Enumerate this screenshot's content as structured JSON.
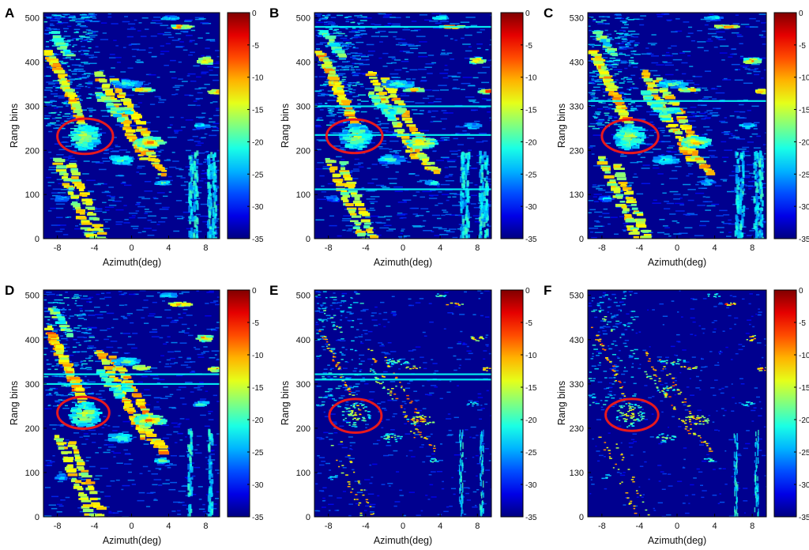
{
  "chart_data": [
    {
      "panel": "A",
      "type": "heatmap",
      "xlabel": "Azimuth(deg)",
      "ylabel": "Rang bins",
      "xticks": [
        "-8",
        "-4",
        "0",
        "4",
        "8"
      ],
      "yticks": [
        "0",
        "100",
        "200",
        "300",
        "400",
        "500"
      ],
      "xlim": [
        -9.5,
        9.5
      ],
      "ylim": [
        0,
        512
      ],
      "colorbar": {
        "ticks": [
          "0",
          "-5",
          "-10",
          "-15",
          "-20",
          "-25",
          "-30",
          "-35"
        ],
        "range": [
          -35,
          0
        ]
      },
      "highlight": {
        "shape": "ellipse",
        "center": [
          -5,
          232
        ],
        "radius": [
          3,
          40
        ],
        "color": "#e8191d"
      },
      "sharpness": 0.25,
      "hlines": [],
      "vlines": [
        6.3,
        6.8
      ]
    },
    {
      "panel": "B",
      "type": "heatmap",
      "xlabel": "Azimuth(deg)",
      "ylabel": "Rang bins",
      "xticks": [
        "-8",
        "-4",
        "0",
        "4",
        "8"
      ],
      "yticks": [
        "0",
        "100",
        "200",
        "300",
        "400",
        "500"
      ],
      "xlim": [
        -9.5,
        9.5
      ],
      "ylim": [
        0,
        512
      ],
      "colorbar": {
        "ticks": [
          "0",
          "-5",
          "-10",
          "-15",
          "-20",
          "-25",
          "-30",
          "-35"
        ],
        "range": [
          -35,
          0
        ]
      },
      "highlight": {
        "shape": "ellipse",
        "center": [
          -5.2,
          232
        ],
        "radius": [
          3,
          38
        ],
        "color": "#e8191d"
      },
      "sharpness": 0.2,
      "hlines": [
        480,
        300,
        235,
        112
      ],
      "vlines": [
        6.3,
        6.8
      ]
    },
    {
      "panel": "C",
      "type": "heatmap",
      "xlabel": "Azimuth(deg)",
      "ylabel": "Rang bins",
      "xticks": [
        "-8",
        "-4",
        "0",
        "4",
        "8"
      ],
      "yticks": [
        "0",
        "130",
        "230",
        "330",
        "430",
        "530"
      ],
      "xlim": [
        -9.5,
        9.5
      ],
      "ylim": [
        0,
        512
      ],
      "colorbar": {
        "ticks": [
          "0",
          "-5",
          "-10",
          "-15",
          "-20",
          "-25",
          "-30",
          "-35"
        ],
        "range": [
          -35,
          0
        ]
      },
      "highlight": {
        "shape": "ellipse",
        "center": [
          -5,
          232
        ],
        "radius": [
          3,
          38
        ],
        "color": "#e8191d"
      },
      "sharpness": 0.25,
      "hlines": [
        312
      ],
      "vlines": [
        6.3,
        6.8
      ]
    },
    {
      "panel": "D",
      "type": "heatmap",
      "xlabel": "Azimuth(deg)",
      "ylabel": "Rang bins",
      "xticks": [
        "-8",
        "-4",
        "0",
        "4",
        "8"
      ],
      "yticks": [
        "0",
        "100",
        "200",
        "300",
        "400",
        "500"
      ],
      "xlim": [
        -9.5,
        9.5
      ],
      "ylim": [
        0,
        512
      ],
      "colorbar": {
        "ticks": [
          "0",
          "-5",
          "-10",
          "-15",
          "-20",
          "-25",
          "-30",
          "-35"
        ],
        "range": [
          -35,
          0
        ]
      },
      "highlight": {
        "shape": "ellipse",
        "center": [
          -5.2,
          235
        ],
        "radius": [
          2.8,
          36
        ],
        "color": "#e8191d"
      },
      "sharpness": 0.45,
      "hlines": [
        322,
        300
      ],
      "vlines": []
    },
    {
      "panel": "E",
      "type": "heatmap",
      "xlabel": "Azimuth(deg)",
      "ylabel": "Rang bins",
      "xticks": [
        "-8",
        "-4",
        "0",
        "4",
        "8"
      ],
      "yticks": [
        "0",
        "100",
        "200",
        "300",
        "400",
        "500"
      ],
      "xlim": [
        -9.5,
        9.5
      ],
      "ylim": [
        0,
        512
      ],
      "colorbar": {
        "ticks": [
          "0",
          "-5",
          "-10",
          "-15",
          "-20",
          "-25",
          "-30",
          "-35"
        ],
        "range": [
          -35,
          0
        ]
      },
      "highlight": {
        "shape": "ellipse",
        "center": [
          -5.1,
          228
        ],
        "radius": [
          2.8,
          38
        ],
        "color": "#e8191d"
      },
      "sharpness": 0.75,
      "hlines": [
        322,
        310
      ],
      "vlines": []
    },
    {
      "panel": "F",
      "type": "heatmap",
      "xlabel": "Azimuth(deg)",
      "ylabel": "Rang bins",
      "xticks": [
        "-8",
        "-4",
        "0",
        "4",
        "8"
      ],
      "yticks": [
        "0",
        "130",
        "230",
        "330",
        "430",
        "530"
      ],
      "xlim": [
        -9.5,
        9.5
      ],
      "ylim": [
        0,
        512
      ],
      "colorbar": {
        "ticks": [
          "0",
          "-5",
          "-10",
          "-15",
          "-20",
          "-25",
          "-30",
          "-35"
        ],
        "range": [
          -35,
          0
        ]
      },
      "highlight": {
        "shape": "ellipse",
        "center": [
          -4.8,
          230
        ],
        "radius": [
          2.8,
          36
        ],
        "color": "#e8191d"
      },
      "sharpness": 0.9,
      "hlines": [],
      "vlines": []
    }
  ]
}
